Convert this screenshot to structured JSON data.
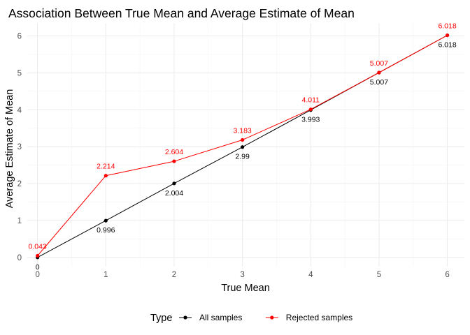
{
  "chart_data": {
    "type": "line",
    "title": "Association Between True Mean and Average Estimate of Mean",
    "xlabel": "True Mean",
    "ylabel": "Average Estimate of Mean",
    "xlim": [
      -0.15,
      6.25
    ],
    "ylim": [
      -0.25,
      6.35
    ],
    "x_ticks": [
      0,
      1,
      2,
      3,
      4,
      5,
      6
    ],
    "y_ticks": [
      0,
      1,
      2,
      3,
      4,
      5,
      6
    ],
    "grid": true,
    "legend_position": "bottom",
    "legend_title": "Type",
    "series": [
      {
        "name": "All samples",
        "color": "#000000",
        "x": [
          0,
          1,
          2,
          3,
          4,
          5,
          6
        ],
        "values": [
          0,
          0.996,
          2.004,
          2.99,
          3.993,
          5.007,
          6.018
        ],
        "labels": [
          "0",
          "0.996",
          "2.004",
          "2.99",
          "3.993",
          "5.007",
          "6.018"
        ],
        "label_position": "below"
      },
      {
        "name": "Rejected samples",
        "color": "#ff0000",
        "x": [
          0,
          1,
          2,
          3,
          4,
          5,
          6
        ],
        "values": [
          0.043,
          2.214,
          2.604,
          3.183,
          4.011,
          5.007,
          6.018
        ],
        "labels": [
          "0.043",
          "2.214",
          "2.604",
          "3.183",
          "4.011",
          "5.007",
          "6.018"
        ],
        "label_position": "above"
      }
    ]
  }
}
